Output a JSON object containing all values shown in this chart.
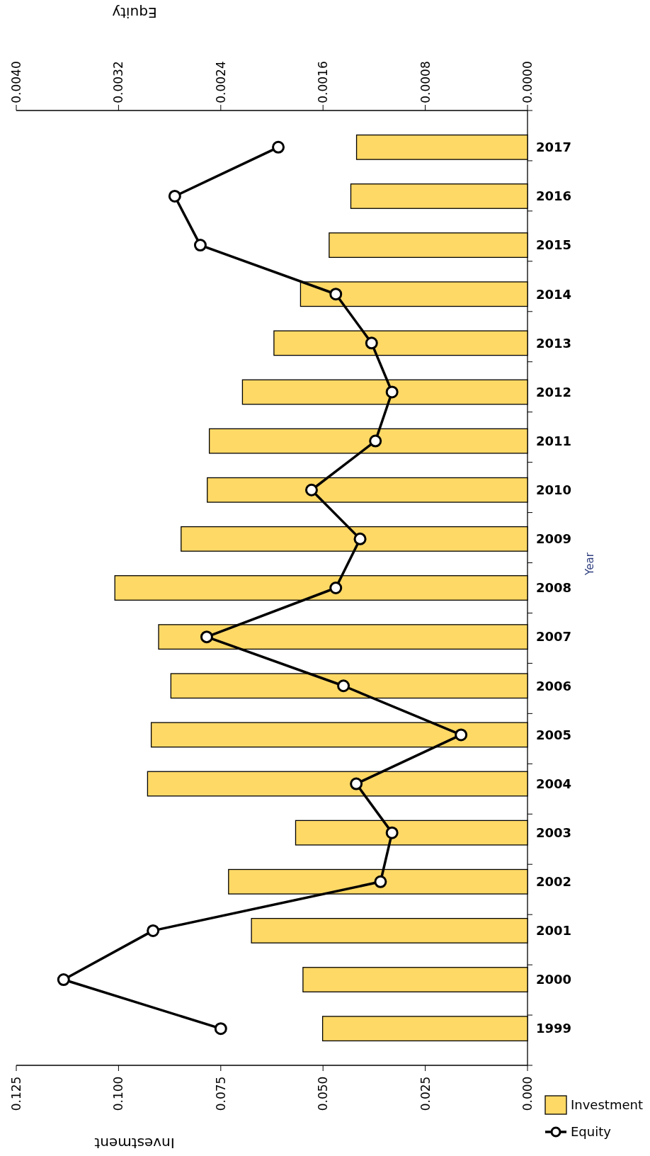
{
  "chart_data": {
    "type": "bar",
    "orientation": "horizontal",
    "xlabel": "Investment",
    "x2label": "Equity",
    "ylabel": "Year",
    "categories": [
      "2017",
      "2016",
      "2015",
      "2014",
      "2013",
      "2012",
      "2011",
      "2010",
      "2009",
      "2008",
      "2007",
      "2006",
      "2005",
      "2004",
      "2003",
      "2002",
      "2001",
      "2000",
      "1999"
    ],
    "xlim": [
      0.125,
      0
    ],
    "xticks": [
      {
        "value": 0.125,
        "label": "0.125"
      },
      {
        "value": 0.1,
        "label": "0.100"
      },
      {
        "value": 0.075,
        "label": "0.075"
      },
      {
        "value": 0.05,
        "label": "0.050"
      },
      {
        "value": 0.025,
        "label": "0.025"
      },
      {
        "value": 0,
        "label": "0.000"
      }
    ],
    "x2lim": [
      0.004,
      0
    ],
    "x2ticks": [
      {
        "value": 0.004,
        "label": "0.0040"
      },
      {
        "value": 0.0032,
        "label": "0.0032"
      },
      {
        "value": 0.0024,
        "label": "0.0024"
      },
      {
        "value": 0.0016,
        "label": "0.0016"
      },
      {
        "value": 0.0008,
        "label": "0.0008"
      },
      {
        "value": 0,
        "label": "0.0000"
      }
    ],
    "legend": "right",
    "series": [
      {
        "name": "Investment",
        "color": "#ffd966",
        "values": [
          0.0418,
          0.0432,
          0.0485,
          0.0555,
          0.062,
          0.0697,
          0.0778,
          0.0783,
          0.0847,
          0.1009,
          0.0902,
          0.0872,
          0.092,
          0.0929,
          0.0567,
          0.0731,
          0.0675,
          0.0549,
          0.0501
        ]
      },
      {
        "name": "Equity",
        "type": "line",
        "axis": "x2",
        "color": "#000000",
        "marker": "circle",
        "values": [
          0.00195,
          0.00276,
          0.00256,
          0.0015,
          0.00122,
          0.00106,
          0.00119,
          0.00169,
          0.00131,
          0.0015,
          0.00251,
          0.00144,
          0.00052,
          0.00134,
          0.00106,
          0.00115,
          0.00293,
          0.00363,
          0.0024
        ]
      }
    ]
  }
}
